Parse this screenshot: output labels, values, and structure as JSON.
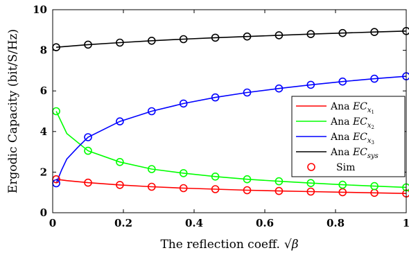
{
  "chart_data": {
    "type": "line",
    "xlabel": "The reflection coeff.",
    "xlabel_symbol": "√β",
    "ylabel": "Ergodic Capacity (bit/S/Hz)",
    "xlim": [
      0,
      1
    ],
    "ylim": [
      0,
      10
    ],
    "x_ticks": [
      "0",
      "0.2",
      "0.4",
      "0.6",
      "0.8",
      "1"
    ],
    "y_ticks": [
      "0",
      "2",
      "4",
      "6",
      "8",
      "10"
    ],
    "grid": false,
    "legend_position": "center-right",
    "series": [
      {
        "name": "Ana EC_x1",
        "legend_prefix": "Ana ",
        "legend_math": "EC",
        "legend_sub": "x",
        "legend_subsub": "1",
        "color": "#ff0000",
        "x": [
          0.01,
          0.04,
          0.1,
          0.19,
          0.28,
          0.37,
          0.46,
          0.55,
          0.64,
          0.73,
          0.82,
          0.91,
          1.0
        ],
        "y": [
          1.65,
          1.58,
          1.48,
          1.37,
          1.28,
          1.21,
          1.16,
          1.11,
          1.07,
          1.04,
          1.01,
          0.98,
          0.95
        ]
      },
      {
        "name": "Ana EC_x2",
        "legend_prefix": "Ana ",
        "legend_math": "EC",
        "legend_sub": "x",
        "legend_subsub": "2",
        "color": "#00ff00",
        "x": [
          0.01,
          0.04,
          0.1,
          0.19,
          0.28,
          0.37,
          0.46,
          0.55,
          0.64,
          0.73,
          0.82,
          0.91,
          1.0
        ],
        "y": [
          5.0,
          3.9,
          3.05,
          2.5,
          2.15,
          1.95,
          1.78,
          1.65,
          1.55,
          1.46,
          1.38,
          1.31,
          1.25
        ]
      },
      {
        "name": "Ana EC_x3",
        "legend_prefix": "Ana ",
        "legend_math": "EC",
        "legend_sub": "x",
        "legend_subsub": "3",
        "color": "#0000ff",
        "x": [
          0.01,
          0.025,
          0.04,
          0.07,
          0.1,
          0.19,
          0.28,
          0.37,
          0.46,
          0.55,
          0.64,
          0.73,
          0.82,
          0.91,
          1.0
        ],
        "y": [
          1.45,
          2.1,
          2.65,
          3.2,
          3.72,
          4.5,
          5.0,
          5.38,
          5.68,
          5.92,
          6.12,
          6.3,
          6.46,
          6.6,
          6.72
        ]
      },
      {
        "name": "Ana EC_sys",
        "legend_prefix": "Ana ",
        "legend_math": "EC",
        "legend_sub": "sys",
        "legend_subsub": "",
        "color": "#000000",
        "x": [
          0.01,
          0.1,
          0.19,
          0.28,
          0.37,
          0.46,
          0.55,
          0.64,
          0.73,
          0.82,
          0.91,
          1.0
        ],
        "y": [
          8.15,
          8.28,
          8.38,
          8.47,
          8.55,
          8.62,
          8.68,
          8.74,
          8.8,
          8.85,
          8.9,
          8.95
        ]
      }
    ],
    "markers": {
      "name": "Sim",
      "color": "#ff0000",
      "x": [
        0.01,
        0.1,
        0.19,
        0.28,
        0.37,
        0.46,
        0.55,
        0.64,
        0.73,
        0.82,
        0.91,
        1.0
      ]
    }
  }
}
